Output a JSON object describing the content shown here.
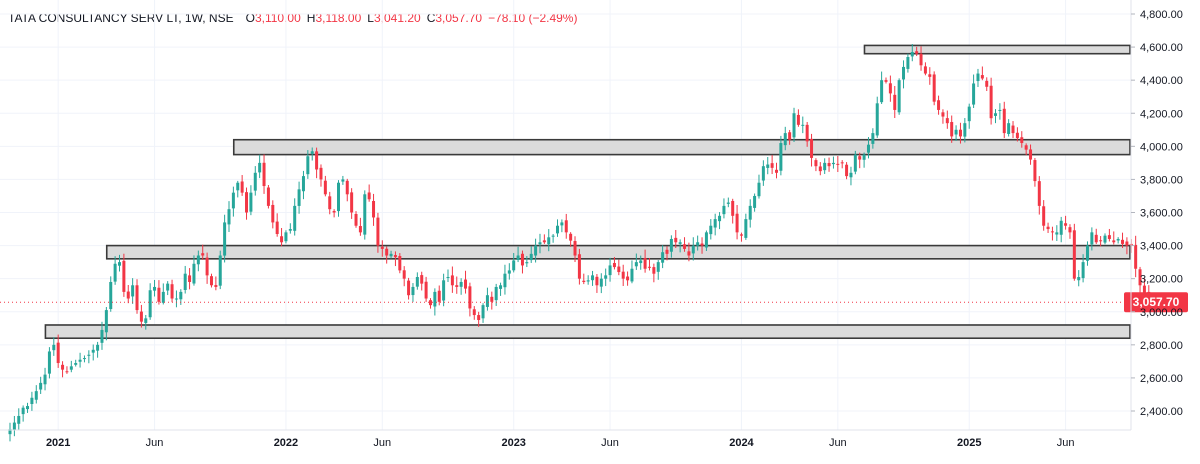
{
  "header": {
    "symbol": "TATA CONSULTANCY SERV LT, 1W, NSE",
    "open_label": "O",
    "open": "3,110.00",
    "high_label": "H",
    "high": "3,118.00",
    "low_label": "L",
    "low": "3,041.20",
    "close_label": "C",
    "close": "3,057.70",
    "change": "−78.10 (−2.49%)"
  },
  "colors": {
    "up": "#26a69a",
    "down": "#f23645",
    "zone_fill": "#d9d9d9",
    "zone_stroke": "#3a3a3a",
    "grid": "#f0f3fa",
    "axis_text": "#131722"
  },
  "chart_data": {
    "type": "candlestick",
    "ylim": [
      2300,
      4840
    ],
    "y_ticks": [
      {
        "value": 2400,
        "label": "2,400.00"
      },
      {
        "value": 2600,
        "label": "2,600.00"
      },
      {
        "value": 2800,
        "label": "2,800.00"
      },
      {
        "value": 3000,
        "label": "3,000.00"
      },
      {
        "value": 3200,
        "label": "3,200.00"
      },
      {
        "value": 3400,
        "label": "3,400.00"
      },
      {
        "value": 3600,
        "label": "3,600.00"
      },
      {
        "value": 3800,
        "label": "3,800.00"
      },
      {
        "value": 4000,
        "label": "4,000.00"
      },
      {
        "value": 4200,
        "label": "4,200.00"
      },
      {
        "value": 4400,
        "label": "4,400.00"
      },
      {
        "value": 4600,
        "label": "4,600.00"
      },
      {
        "value": 4800,
        "label": "4,800.00"
      }
    ],
    "x_ticks": [
      {
        "week": 11,
        "label": "2021"
      },
      {
        "week": 33,
        "label": "Jun"
      },
      {
        "week": 63,
        "label": "2022"
      },
      {
        "week": 85,
        "label": "Jun"
      },
      {
        "week": 115,
        "label": "2023"
      },
      {
        "week": 137,
        "label": "Jun"
      },
      {
        "week": 167,
        "label": "2024"
      },
      {
        "week": 189,
        "label": "Jun"
      },
      {
        "week": 219,
        "label": "2025"
      },
      {
        "week": 241,
        "label": "Jun"
      }
    ],
    "last_price": {
      "value": 3057.7,
      "label": "3,057.70"
    },
    "zones": [
      {
        "from_week": 196,
        "low": 4560,
        "high": 4610
      },
      {
        "from_week": 52,
        "low": 3950,
        "high": 4040
      },
      {
        "from_week": 23,
        "low": 3320,
        "high": 3400
      },
      {
        "from_week": 9,
        "low": 2840,
        "high": 2920
      }
    ],
    "weekly_close": [
      2290,
      2330,
      2370,
      2420,
      2430,
      2480,
      2520,
      2570,
      2620,
      2760,
      2800,
      2690,
      2650,
      2640,
      2670,
      2690,
      2710,
      2720,
      2740,
      2770,
      2800,
      2890,
      3010,
      3180,
      3290,
      3300,
      3120,
      3080,
      3160,
      3010,
      2940,
      2960,
      3130,
      3150,
      3060,
      3120,
      3170,
      3080,
      3080,
      3120,
      3230,
      3180,
      3290,
      3340,
      3340,
      3220,
      3160,
      3150,
      3340,
      3540,
      3620,
      3720,
      3780,
      3720,
      3600,
      3720,
      3840,
      3900,
      3760,
      3640,
      3540,
      3470,
      3420,
      3480,
      3500,
      3640,
      3740,
      3820,
      3940,
      3970,
      3860,
      3800,
      3710,
      3620,
      3600,
      3780,
      3800,
      3710,
      3600,
      3520,
      3480,
      3710,
      3680,
      3570,
      3400,
      3380,
      3340,
      3350,
      3330,
      3250,
      3200,
      3100,
      3150,
      3210,
      3170,
      3080,
      3040,
      3120,
      3060,
      3190,
      3210,
      3160,
      3150,
      3180,
      3140,
      3020,
      2980,
      2950,
      3040,
      3100,
      3060,
      3150,
      3160,
      3230,
      3250,
      3310,
      3340,
      3280,
      3300,
      3350,
      3400,
      3420,
      3420,
      3450,
      3460,
      3520,
      3540,
      3480,
      3430,
      3340,
      3200,
      3180,
      3190,
      3220,
      3160,
      3200,
      3220,
      3280,
      3270,
      3240,
      3200,
      3190,
      3260,
      3300,
      3310,
      3260,
      3270,
      3230,
      3300,
      3360,
      3350,
      3440,
      3420,
      3420,
      3380,
      3340,
      3400,
      3420,
      3400,
      3480,
      3520,
      3560,
      3580,
      3640,
      3660,
      3580,
      3480,
      3460,
      3560,
      3640,
      3700,
      3780,
      3880,
      3890,
      3870,
      3840,
      4020,
      4080,
      4040,
      4200,
      4130,
      4130,
      4030,
      3930,
      3880,
      3850,
      3900,
      3880,
      3900,
      3890,
      3900,
      3820,
      3840,
      3950,
      3920,
      3950,
      4010,
      4080,
      4260,
      4400,
      4390,
      4320,
      4220,
      4400,
      4480,
      4540,
      4570,
      4560,
      4490,
      4440,
      4420,
      4270,
      4220,
      4180,
      4140,
      4060,
      4100,
      4060,
      4140,
      4240,
      4380,
      4440,
      4410,
      4360,
      4170,
      4200,
      4220,
      4080,
      4140,
      4080,
      4050,
      4020,
      3980,
      3920,
      3790,
      3640,
      3520,
      3500,
      3480,
      3480,
      3550,
      3520,
      3480,
      3200,
      3210,
      3300,
      3400,
      3480,
      3420,
      3430,
      3460,
      3440,
      3420,
      3440,
      3410,
      3400,
      3400,
      3260,
      3160,
      3110,
      3060
    ],
    "volatility_seed": 7
  }
}
